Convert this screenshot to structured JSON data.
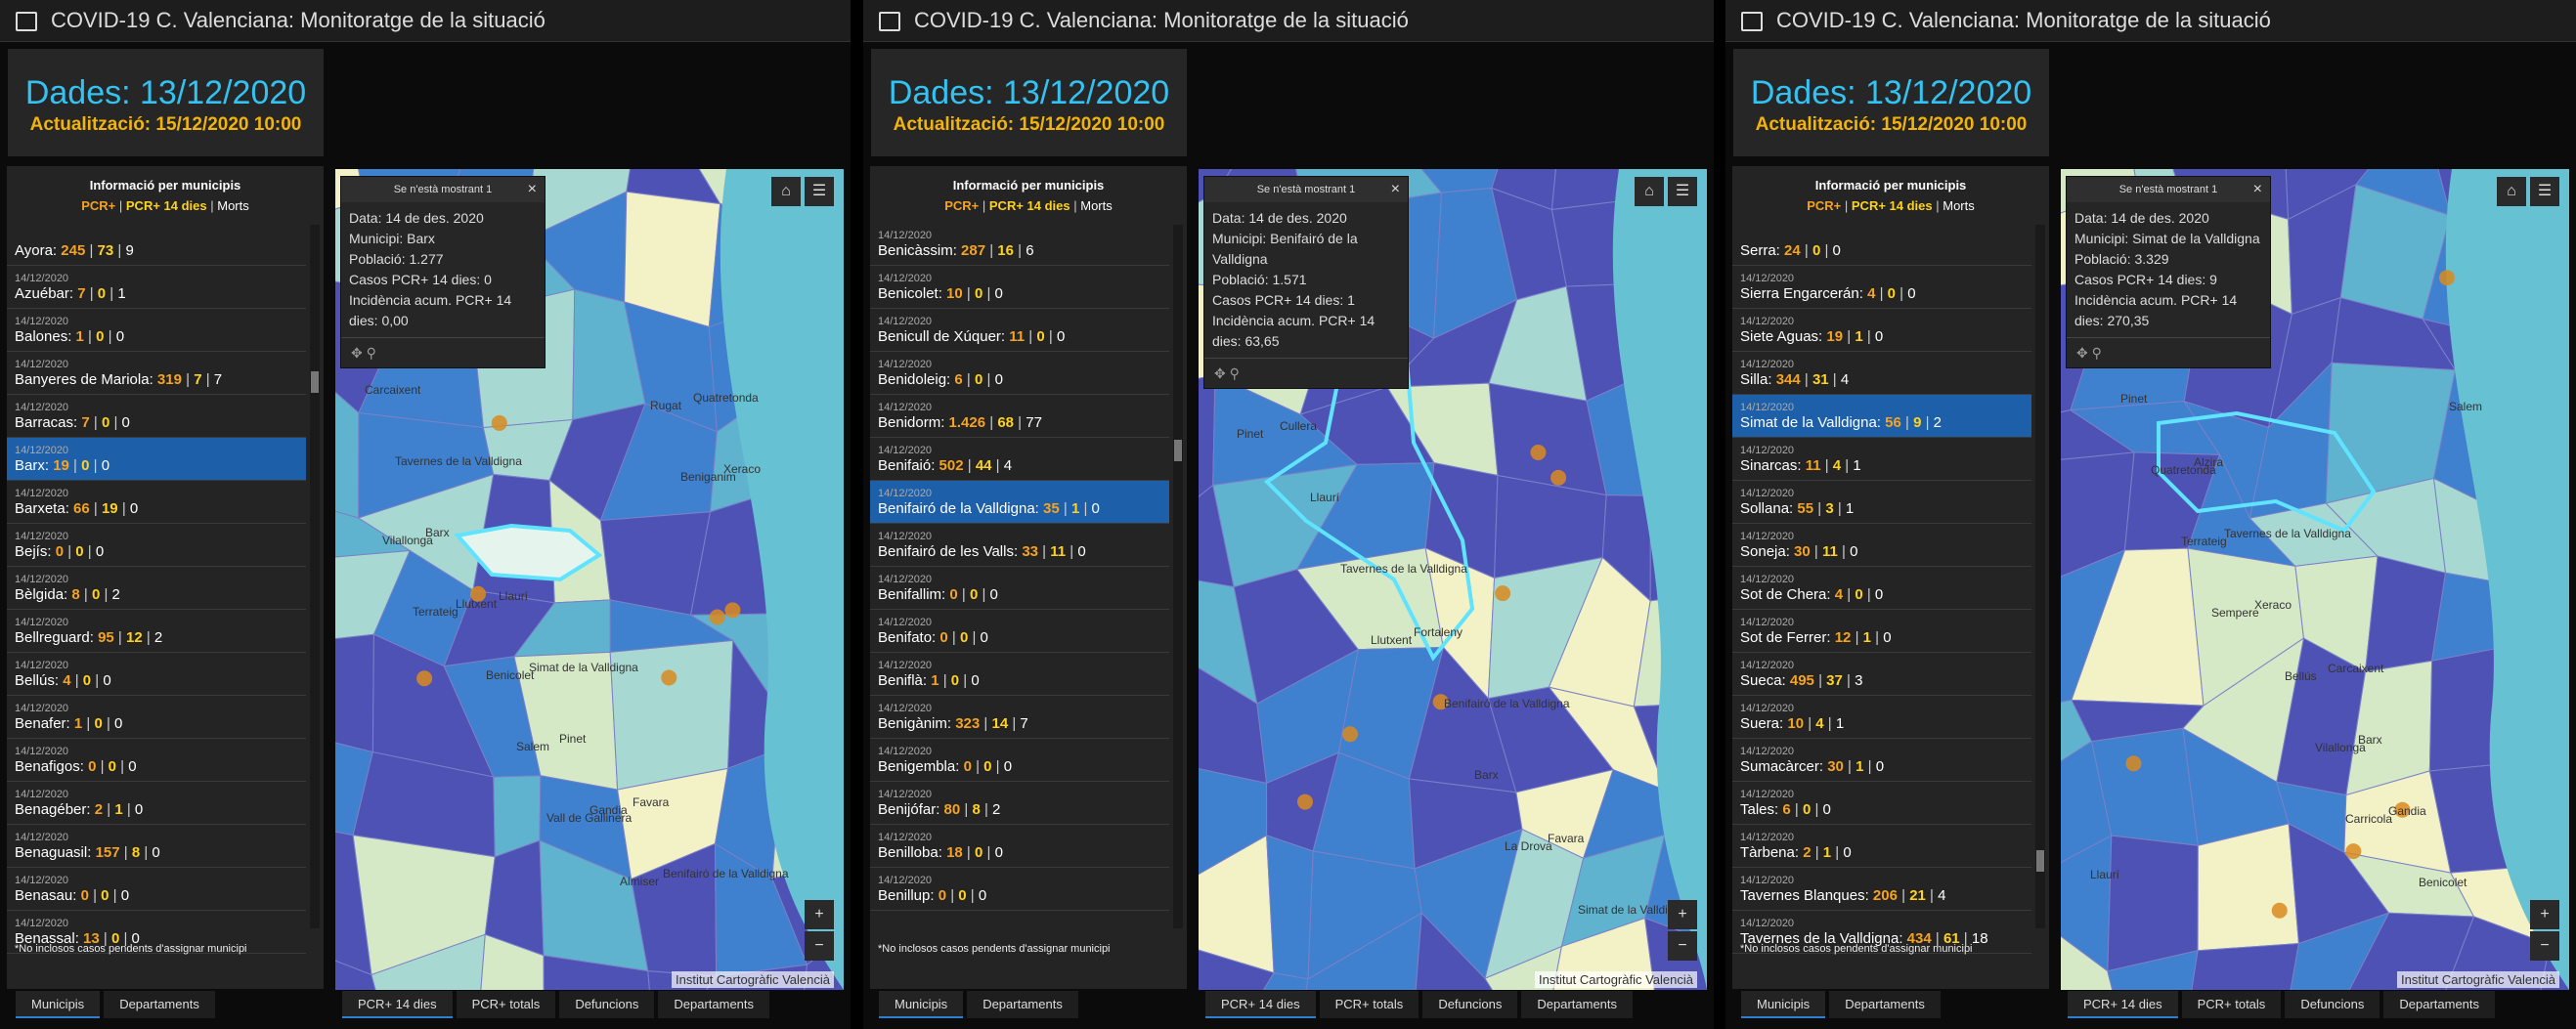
{
  "panels": [
    {
      "title": "COVID-19 C. Valenciana: Monitoratge de la situació",
      "date": "Dades: 13/12/2020",
      "update": "Actualització: 15/12/2020 10:00",
      "list_title": "Informació per municipis",
      "legend": [
        "PCR+",
        "PCR+ 14 dies",
        "Morts"
      ],
      "rows": [
        {
          "name": "Ayora:",
          "pcr": "245",
          "pcr14": "73",
          "morts": "9"
        },
        {
          "date": "14/12/2020",
          "name": "Azuébar:",
          "pcr": "7",
          "pcr14": "0",
          "morts": "1"
        },
        {
          "date": "14/12/2020",
          "name": "Balones:",
          "pcr": "1",
          "pcr14": "0",
          "morts": "0"
        },
        {
          "date": "14/12/2020",
          "name": "Banyeres de Mariola:",
          "pcr": "319",
          "pcr14": "7",
          "morts": "7"
        },
        {
          "date": "14/12/2020",
          "name": "Barracas:",
          "pcr": "7",
          "pcr14": "0",
          "morts": "0"
        },
        {
          "date": "14/12/2020",
          "name": "Barx:",
          "pcr": "19",
          "pcr14": "0",
          "morts": "0",
          "selected": true
        },
        {
          "date": "14/12/2020",
          "name": "Barxeta:",
          "pcr": "66",
          "pcr14": "19",
          "morts": "0"
        },
        {
          "date": "14/12/2020",
          "name": "Bejís:",
          "pcr": "0",
          "pcr14": "0",
          "morts": "0"
        },
        {
          "date": "14/12/2020",
          "name": "Bèlgida:",
          "pcr": "8",
          "pcr14": "0",
          "morts": "2"
        },
        {
          "date": "14/12/2020",
          "name": "Bellreguard:",
          "pcr": "95",
          "pcr14": "12",
          "morts": "2"
        },
        {
          "date": "14/12/2020",
          "name": "Bellús:",
          "pcr": "4",
          "pcr14": "0",
          "morts": "0"
        },
        {
          "date": "14/12/2020",
          "name": "Benafer:",
          "pcr": "1",
          "pcr14": "0",
          "morts": "0"
        },
        {
          "date": "14/12/2020",
          "name": "Benafigos:",
          "pcr": "0",
          "pcr14": "0",
          "morts": "0"
        },
        {
          "date": "14/12/2020",
          "name": "Benagéber:",
          "pcr": "2",
          "pcr14": "1",
          "morts": "0"
        },
        {
          "date": "14/12/2020",
          "name": "Benaguasil:",
          "pcr": "157",
          "pcr14": "8",
          "morts": "0"
        },
        {
          "date": "14/12/2020",
          "name": "Benasau:",
          "pcr": "0",
          "pcr14": "0",
          "morts": "0"
        },
        {
          "date": "14/12/2020",
          "name": "Benassal:",
          "pcr": "13",
          "pcr14": "0",
          "morts": "0"
        }
      ],
      "footnote": "*No inclosos casos pendents d'assignar municipi",
      "popup": {
        "title": "Se n'està mostrant 1",
        "lines": [
          "Data: 14 de des. 2020",
          "Municipi: Barx",
          "Població: 1.277",
          "Casos PCR+ 14 dies: 0",
          "Incidència acum. PCR+ 14 dies: 0,00"
        ]
      },
      "map_labels": [
        "Carcaixent",
        "Llaurí",
        "Favara",
        "Tavernes de la Valldigna",
        "Simat de la Valldigna",
        "Benifairó de la Valldigna",
        "Barx",
        "Pinet",
        "Quatretonda",
        "Llutxent",
        "Gandia",
        "Xeraco",
        "Benicolet",
        "Almiser",
        "Vilallonga",
        "Salem",
        "Rugat",
        "Terrateig",
        "Vall de Gallinera",
        "Beniganim"
      ],
      "attribution": "Institut Cartogràfic Valencià",
      "left_tabs": [
        "Municipis",
        "Departaments"
      ],
      "right_tabs": [
        "PCR+ 14 dies",
        "PCR+ totals",
        "Defuncions",
        "Departaments"
      ]
    },
    {
      "title": "COVID-19 C. Valenciana: Monitoratge de la situació",
      "date": "Dades: 13/12/2020",
      "update": "Actualització: 15/12/2020 10:00",
      "list_title": "Informació per municipis",
      "legend": [
        "PCR+",
        "PCR+ 14 dies",
        "Morts"
      ],
      "rows": [
        {
          "date": "14/12/2020",
          "name": "Benicàssim:",
          "pcr": "287",
          "pcr14": "16",
          "morts": "6"
        },
        {
          "date": "14/12/2020",
          "name": "Benicolet:",
          "pcr": "10",
          "pcr14": "0",
          "morts": "0"
        },
        {
          "date": "14/12/2020",
          "name": "Benicull de Xúquer:",
          "pcr": "11",
          "pcr14": "0",
          "morts": "0"
        },
        {
          "date": "14/12/2020",
          "name": "Benidoleig:",
          "pcr": "6",
          "pcr14": "0",
          "morts": "0"
        },
        {
          "date": "14/12/2020",
          "name": "Benidorm:",
          "pcr": "1.426",
          "pcr14": "68",
          "morts": "77"
        },
        {
          "date": "14/12/2020",
          "name": "Benifaió:",
          "pcr": "502",
          "pcr14": "44",
          "morts": "4"
        },
        {
          "date": "14/12/2020",
          "name": "Benifairó de la Valldigna:",
          "pcr": "35",
          "pcr14": "1",
          "morts": "0",
          "selected": true
        },
        {
          "date": "14/12/2020",
          "name": "Benifairó de les Valls:",
          "pcr": "33",
          "pcr14": "11",
          "morts": "0"
        },
        {
          "date": "14/12/2020",
          "name": "Benifallim:",
          "pcr": "0",
          "pcr14": "0",
          "morts": "0"
        },
        {
          "date": "14/12/2020",
          "name": "Benifato:",
          "pcr": "0",
          "pcr14": "0",
          "morts": "0"
        },
        {
          "date": "14/12/2020",
          "name": "Beniflà:",
          "pcr": "1",
          "pcr14": "0",
          "morts": "0"
        },
        {
          "date": "14/12/2020",
          "name": "Benigànim:",
          "pcr": "323",
          "pcr14": "14",
          "morts": "7"
        },
        {
          "date": "14/12/2020",
          "name": "Benigembla:",
          "pcr": "0",
          "pcr14": "0",
          "morts": "0"
        },
        {
          "date": "14/12/2020",
          "name": "Benijófar:",
          "pcr": "80",
          "pcr14": "8",
          "morts": "2"
        },
        {
          "date": "14/12/2020",
          "name": "Benilloba:",
          "pcr": "18",
          "pcr14": "0",
          "morts": "0"
        },
        {
          "date": "14/12/2020",
          "name": "Benillup:",
          "pcr": "0",
          "pcr14": "0",
          "morts": "0"
        }
      ],
      "footnote": "*No inclosos casos pendents d'assignar municipi",
      "popup": {
        "title": "Se n'està mostrant 1",
        "lines": [
          "Data: 14 de des. 2020",
          "Municipi: Benifairó de la Valldigna",
          "Població: 1.571",
          "Casos PCR+ 14 dies: 1",
          "Incidència acum. PCR+ 14 dies: 63,65"
        ]
      },
      "map_labels": [
        "Cullera",
        "Fortaleny",
        "Favara",
        "Llaurí",
        "Benifairó de la Valldigna",
        "Simat de la Valldigna",
        "Tavernes de la Valldigna",
        "Barx",
        "Pinet",
        "Llutxent",
        "La Drova"
      ],
      "attribution": "Institut Cartogràfic Valencià",
      "left_tabs": [
        "Municipis",
        "Departaments"
      ],
      "right_tabs": [
        "PCR+ 14 dies",
        "PCR+ totals",
        "Defuncions",
        "Departaments"
      ]
    },
    {
      "title": "COVID-19 C. Valenciana: Monitoratge de la situació",
      "date": "Dades: 13/12/2020",
      "update": "Actualització: 15/12/2020 10:00",
      "list_title": "Informació per municipis",
      "legend": [
        "PCR+",
        "PCR+ 14 dies",
        "Morts"
      ],
      "rows": [
        {
          "name": "Serra:",
          "pcr": "24",
          "pcr14": "0",
          "morts": "0"
        },
        {
          "date": "14/12/2020",
          "name": "Sierra Engarcerán:",
          "pcr": "4",
          "pcr14": "0",
          "morts": "0"
        },
        {
          "date": "14/12/2020",
          "name": "Siete Aguas:",
          "pcr": "19",
          "pcr14": "1",
          "morts": "0"
        },
        {
          "date": "14/12/2020",
          "name": "Silla:",
          "pcr": "344",
          "pcr14": "31",
          "morts": "4"
        },
        {
          "date": "14/12/2020",
          "name": "Simat de la Valldigna:",
          "pcr": "56",
          "pcr14": "9",
          "morts": "2",
          "selected": true
        },
        {
          "date": "14/12/2020",
          "name": "Sinarcas:",
          "pcr": "11",
          "pcr14": "4",
          "morts": "1"
        },
        {
          "date": "14/12/2020",
          "name": "Sollana:",
          "pcr": "55",
          "pcr14": "3",
          "morts": "1"
        },
        {
          "date": "14/12/2020",
          "name": "Soneja:",
          "pcr": "30",
          "pcr14": "11",
          "morts": "0"
        },
        {
          "date": "14/12/2020",
          "name": "Sot de Chera:",
          "pcr": "4",
          "pcr14": "0",
          "morts": "0"
        },
        {
          "date": "14/12/2020",
          "name": "Sot de Ferrer:",
          "pcr": "12",
          "pcr14": "1",
          "morts": "0"
        },
        {
          "date": "14/12/2020",
          "name": "Sueca:",
          "pcr": "495",
          "pcr14": "37",
          "morts": "3"
        },
        {
          "date": "14/12/2020",
          "name": "Suera:",
          "pcr": "10",
          "pcr14": "4",
          "morts": "1"
        },
        {
          "date": "14/12/2020",
          "name": "Sumacàrcer:",
          "pcr": "30",
          "pcr14": "1",
          "morts": "0"
        },
        {
          "date": "14/12/2020",
          "name": "Tales:",
          "pcr": "6",
          "pcr14": "0",
          "morts": "0"
        },
        {
          "date": "14/12/2020",
          "name": "Tàrbena:",
          "pcr": "2",
          "pcr14": "1",
          "morts": "0"
        },
        {
          "date": "14/12/2020",
          "name": "Tavernes Blanques:",
          "pcr": "206",
          "pcr14": "21",
          "morts": "4"
        },
        {
          "date": "14/12/2020",
          "name": "Tavernes de la Valldigna:",
          "pcr": "434",
          "pcr14": "61",
          "morts": "18"
        }
      ],
      "footnote": "*No inclosos casos pendents d'assignar municipi",
      "popup": {
        "title": "Se n'està mostrant 1",
        "lines": [
          "Data: 14 de des. 2020",
          "Municipi: Simat de la Valldigna",
          "Població: 3.329",
          "Casos PCR+ 14 dies: 9",
          "Incidència acum. PCR+ 14 dies: 270,35"
        ]
      },
      "map_labels": [
        "Alzira",
        "Carcaixent",
        "Llaurí",
        "Tavernes de la Valldigna",
        "Barx",
        "Pinet",
        "Xeraco",
        "Gandia",
        "Quatretonda",
        "Bellús",
        "Benicolet",
        "Terrateig",
        "Vilallonga",
        "Salem",
        "Sempere",
        "Carricola"
      ],
      "attribution": "Institut Cartogràfic Valencià",
      "left_tabs": [
        "Municipis",
        "Departaments"
      ],
      "right_tabs": [
        "PCR+ 14 dies",
        "PCR+ totals",
        "Defuncions",
        "Departaments"
      ]
    }
  ]
}
